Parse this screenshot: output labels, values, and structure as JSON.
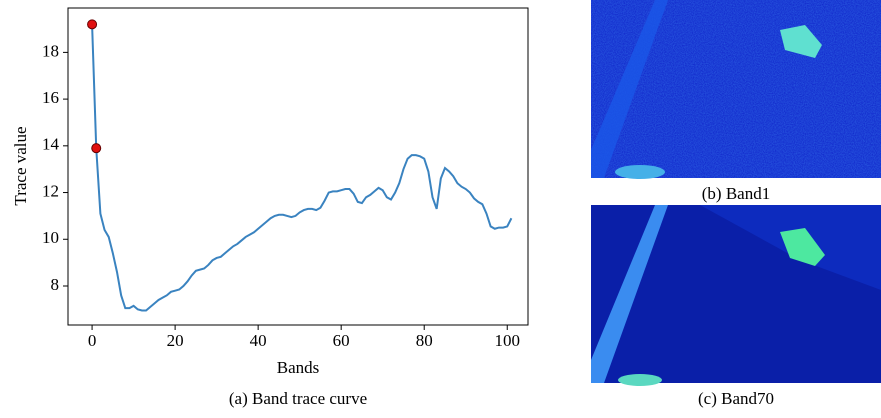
{
  "chart_data": {
    "type": "line",
    "caption": "(a) Band trace curve",
    "xlabel": "Bands",
    "ylabel": "Trace value",
    "x": [
      0,
      1,
      2,
      3,
      4,
      5,
      6,
      7,
      8,
      9,
      10,
      11,
      12,
      13,
      14,
      15,
      16,
      17,
      18,
      19,
      20,
      21,
      22,
      23,
      24,
      25,
      26,
      27,
      28,
      29,
      30,
      31,
      32,
      33,
      34,
      35,
      36,
      37,
      38,
      39,
      40,
      41,
      42,
      43,
      44,
      45,
      46,
      47,
      48,
      49,
      50,
      51,
      52,
      53,
      54,
      55,
      56,
      57,
      58,
      59,
      60,
      61,
      62,
      63,
      64,
      65,
      66,
      67,
      68,
      69,
      70,
      71,
      72,
      73,
      74,
      75,
      76,
      77,
      78,
      79,
      80,
      81,
      82,
      83,
      84,
      85,
      86,
      87,
      88,
      89,
      90,
      91,
      92,
      93,
      94,
      95,
      96,
      97,
      98,
      99,
      100,
      101
    ],
    "series": [
      {
        "color": "#3a83c0",
        "values": [
          19.2,
          13.9,
          11.1,
          10.4,
          10.1,
          9.4,
          8.6,
          7.6,
          7.05,
          7.05,
          7.15,
          7.0,
          6.95,
          6.95,
          7.1,
          7.25,
          7.4,
          7.5,
          7.6,
          7.75,
          7.8,
          7.85,
          8.0,
          8.2,
          8.45,
          8.65,
          8.7,
          8.75,
          8.9,
          9.1,
          9.2,
          9.25,
          9.4,
          9.55,
          9.7,
          9.8,
          9.95,
          10.1,
          10.2,
          10.3,
          10.45,
          10.6,
          10.75,
          10.9,
          11.0,
          11.05,
          11.05,
          11.0,
          10.95,
          11.0,
          11.15,
          11.25,
          11.3,
          11.3,
          11.25,
          11.35,
          11.65,
          12.0,
          12.05,
          12.05,
          12.1,
          12.15,
          12.15,
          11.95,
          11.6,
          11.55,
          11.8,
          11.9,
          12.05,
          12.2,
          12.1,
          11.8,
          11.7,
          12.0,
          12.4,
          13.0,
          13.45,
          13.6,
          13.6,
          13.55,
          13.45,
          12.9,
          11.8,
          11.3,
          12.6,
          13.05,
          12.9,
          12.7,
          12.4,
          12.25,
          12.15,
          12.0,
          11.75,
          11.6,
          11.5,
          11.1,
          10.55,
          10.45,
          10.5,
          10.5,
          10.55,
          10.9
        ]
      }
    ],
    "highlight": {
      "color": "#e01010",
      "x": [
        0,
        1
      ],
      "values": [
        19.2,
        13.9
      ]
    },
    "xlim": [
      -5.8,
      105
    ],
    "ylim": [
      6.33,
      19.9
    ],
    "xticks": [
      0,
      20,
      40,
      60,
      80,
      100
    ],
    "yticks": [
      8,
      10,
      12,
      14,
      16,
      18
    ]
  },
  "images": [
    {
      "caption": "(b) Band1"
    },
    {
      "caption": "(c) Band70"
    }
  ]
}
